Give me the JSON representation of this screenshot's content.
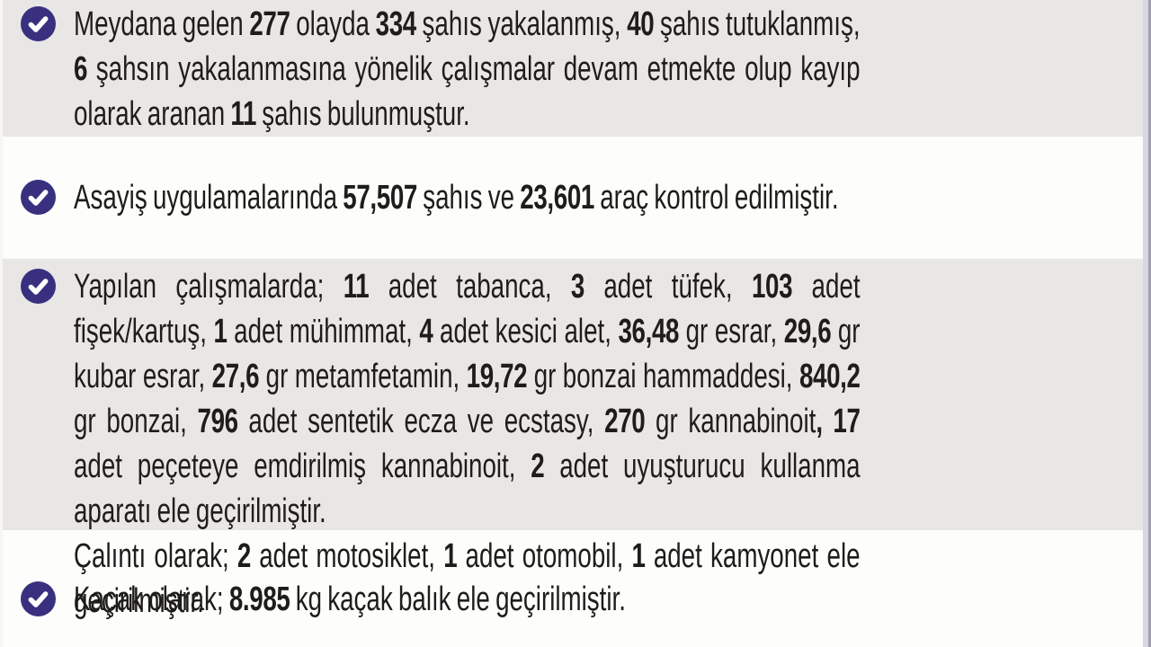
{
  "page": {
    "language": "tr",
    "colors": {
      "band_gray": "#e8e7e5",
      "band_white": "#fdfdfb",
      "accent_check_circle": "#38307f",
      "check_glyph": "#ffffff",
      "text": "#1e1d1b",
      "right_edge_light": "#d9d6e8",
      "right_edge_dark": "#a19fab",
      "left_edge": "#f7f6f3"
    },
    "bullet_icon": "check-circle"
  },
  "items": [
    {
      "id": "incidents-arrests",
      "paragraphs": [
        [
          {
            "t": "Meydana gelen "
          },
          {
            "t": "277",
            "b": 1
          },
          {
            "t": " olayda "
          },
          {
            "t": "334",
            "b": 1
          },
          {
            "t": " şahıs yakalanmış, "
          },
          {
            "t": "40",
            "b": 1
          },
          {
            "t": " şahıs tutuklanmış, "
          },
          {
            "t": "6",
            "b": 1
          },
          {
            "t": " şahsın yakalanmasına yönelik çalışmalar devam etmekte olup kayıp olarak aranan "
          },
          {
            "t": "11",
            "b": 1
          },
          {
            "t": " şahıs bulunmuştur."
          }
        ]
      ]
    },
    {
      "id": "public-order-checks",
      "paragraphs": [
        [
          {
            "t": "Asayiş uygulamalarında "
          },
          {
            "t": "57,507",
            "b": 1
          },
          {
            "t": " şahıs ve "
          },
          {
            "t": "23,601",
            "b": 1
          },
          {
            "t": " araç kontrol edilmiştir."
          }
        ]
      ]
    },
    {
      "id": "seizures",
      "paragraphs": [
        [
          {
            "t": "Yapılan çalışmalarda; "
          },
          {
            "t": "11",
            "b": 1
          },
          {
            "t": " adet tabanca, "
          },
          {
            "t": "3",
            "b": 1
          },
          {
            "t": " adet tüfek, "
          },
          {
            "t": "103",
            "b": 1
          },
          {
            "t": " adet fişek/kartuş, "
          },
          {
            "t": "1",
            "b": 1
          },
          {
            "t": " adet mühimmat, "
          },
          {
            "t": "4",
            "b": 1
          },
          {
            "t": " adet kesici alet, "
          },
          {
            "t": "36,48",
            "b": 1
          },
          {
            "t": " gr esrar, "
          },
          {
            "t": "29,6",
            "b": 1
          },
          {
            "t": " gr kubar esrar, "
          },
          {
            "t": "27,6",
            "b": 1
          },
          {
            "t": " gr metamfetamin, "
          },
          {
            "t": "19,72",
            "b": 1
          },
          {
            "t": " gr bonzai hammaddesi, "
          },
          {
            "t": "840,2",
            "b": 1
          },
          {
            "t": " gr bonzai, "
          },
          {
            "t": "796",
            "b": 1
          },
          {
            "t": " adet sentetik ecza ve ecstasy, "
          },
          {
            "t": "270",
            "b": 1
          },
          {
            "t": " gr kannabinoit"
          },
          {
            "t": ",",
            "b": 1
          },
          {
            "t": " "
          },
          {
            "t": "17",
            "b": 1
          },
          {
            "t": " adet peçeteye emdirilmiş kannabinoit, "
          },
          {
            "t": "2",
            "b": 1
          },
          {
            "t": " adet uyuşturucu kullanma aparatı ele geçirilmiştir."
          }
        ],
        [
          {
            "t": "Çalıntı olarak; "
          },
          {
            "t": "2",
            "b": 1
          },
          {
            "t": " adet motosiklet, "
          },
          {
            "t": "1",
            "b": 1
          },
          {
            "t": " adet otomobil, "
          },
          {
            "t": "1",
            "b": 1
          },
          {
            "t": " adet kamyonet ele geçirilmiştir."
          }
        ]
      ]
    },
    {
      "id": "smuggling",
      "paragraphs": [
        [
          {
            "t": "Kaçak olarak; "
          },
          {
            "t": "8.985",
            "b": 1
          },
          {
            "t": " kg kaçak balık ele geçirilmiştir."
          }
        ]
      ]
    }
  ]
}
